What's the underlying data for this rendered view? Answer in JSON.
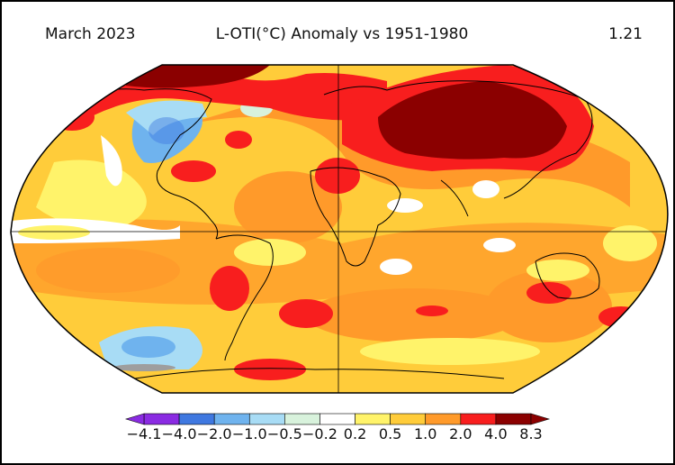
{
  "header": {
    "left": "March 2023",
    "center": "L-OTI(°C) Anomaly vs 1951-1980",
    "right": "1.21"
  },
  "colorbar": {
    "labels": [
      "−4.1",
      "−4.0",
      "−2.0",
      "−1.0",
      "−0.5",
      "−0.2",
      "0.2",
      "0.5",
      "1.0",
      "2.0",
      "4.0",
      "8.3"
    ],
    "colors": [
      "#8a2be2",
      "#3f78e0",
      "#6fb3ee",
      "#a8dcf5",
      "#d8f2dc",
      "#ffffff",
      "#fff36a",
      "#ffcc3a",
      "#ff9a2a",
      "#f81e1e",
      "#8b0000"
    ]
  },
  "palette": {
    "background": "#ffcc3a",
    "ocean_outline": "#000000"
  }
}
